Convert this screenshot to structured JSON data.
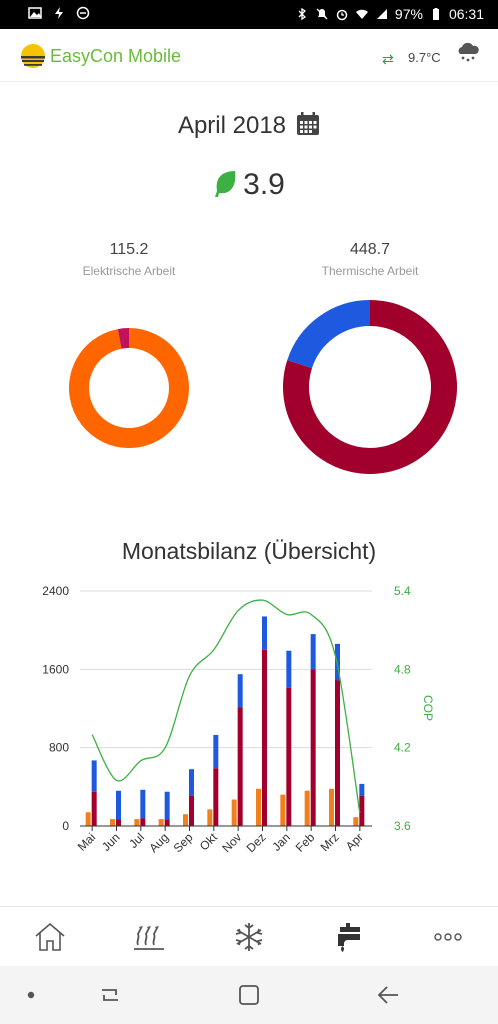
{
  "status": {
    "battery": "97%",
    "time": "06:31"
  },
  "header": {
    "app_name": "EasyCon Mobile",
    "temperature": "9.7°C",
    "sync_icon": "sync-icon",
    "weather_icon": "snow-cloud-icon"
  },
  "period": {
    "label": "April 2018"
  },
  "cop_value": "3.9",
  "electric": {
    "value": "115.2",
    "label": "Elektrische Arbeit",
    "segments": [
      {
        "color": "#ff6600",
        "fraction": 0.97
      },
      {
        "color": "#c0145a",
        "fraction": 0.03
      }
    ]
  },
  "thermal": {
    "value": "448.7",
    "label": "Thermische Arbeit",
    "segments": [
      {
        "color": "#a0002b",
        "fraction": 0.8
      },
      {
        "color": "#1e5ae0",
        "fraction": 0.2
      }
    ]
  },
  "chart_title": "Monatsbilanz (Übersicht)",
  "chart_data": {
    "type": "bar",
    "categories": [
      "Mai",
      "Jun",
      "Jul",
      "Aug",
      "Sep",
      "Okt",
      "Nov",
      "Dez",
      "Jan",
      "Feb",
      "Mrz",
      "Apr"
    ],
    "series": [
      {
        "values": [
          140,
          70,
          70,
          70,
          120,
          170,
          270,
          380,
          320,
          360,
          380,
          90
        ],
        "color": "#f07f1e"
      },
      {
        "values": [
          350,
          70,
          80,
          70,
          310,
          590,
          1210,
          1800,
          1410,
          1600,
          1490,
          310
        ],
        "color": "#a0002b"
      },
      {
        "values": [
          670,
          360,
          370,
          350,
          580,
          930,
          1550,
          2140,
          1790,
          1960,
          1860,
          430
        ],
        "color": "#1e5ae0"
      }
    ],
    "cop_line": {
      "ylabel": "COP",
      "values": [
        4.3,
        3.95,
        4.1,
        4.2,
        4.75,
        4.95,
        5.25,
        5.33,
        5.22,
        5.22,
        4.9,
        3.7
      ]
    },
    "ylim": [
      0,
      2400
    ],
    "yticks": [
      "0",
      "800",
      "1600",
      "2400"
    ],
    "y2lim": [
      3.6,
      5.4
    ],
    "y2ticks": [
      "3.6",
      "4.2",
      "4.8",
      "5.4"
    ],
    "grid": true
  },
  "nav": [
    {
      "name": "home-icon"
    },
    {
      "name": "heating-icon"
    },
    {
      "name": "cooling-icon"
    },
    {
      "name": "water-tap-icon"
    },
    {
      "name": "more-icon"
    }
  ]
}
